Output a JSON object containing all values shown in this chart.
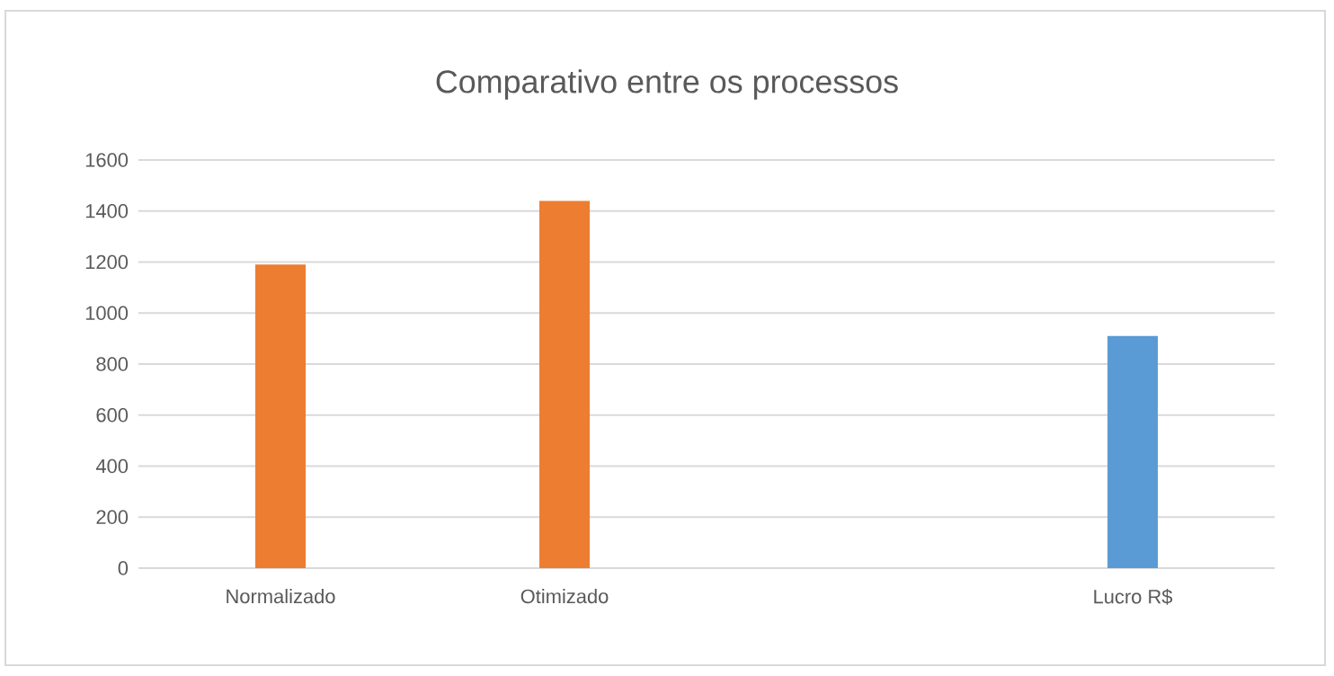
{
  "chart_data": {
    "type": "bar",
    "title": "Comparativo entre os processos",
    "categories": [
      "Normalizado",
      "Otimizado",
      null,
      "Lucro R$"
    ],
    "series": [
      {
        "color": "#ed7d31",
        "values": [
          1190,
          1440,
          null,
          null
        ]
      },
      {
        "color": "#5b9bd5",
        "values": [
          null,
          null,
          null,
          910
        ]
      }
    ],
    "ylim": [
      0,
      1600
    ],
    "yticks": [
      0,
      200,
      400,
      600,
      800,
      1000,
      1200,
      1400,
      1600
    ],
    "grid": "y"
  }
}
